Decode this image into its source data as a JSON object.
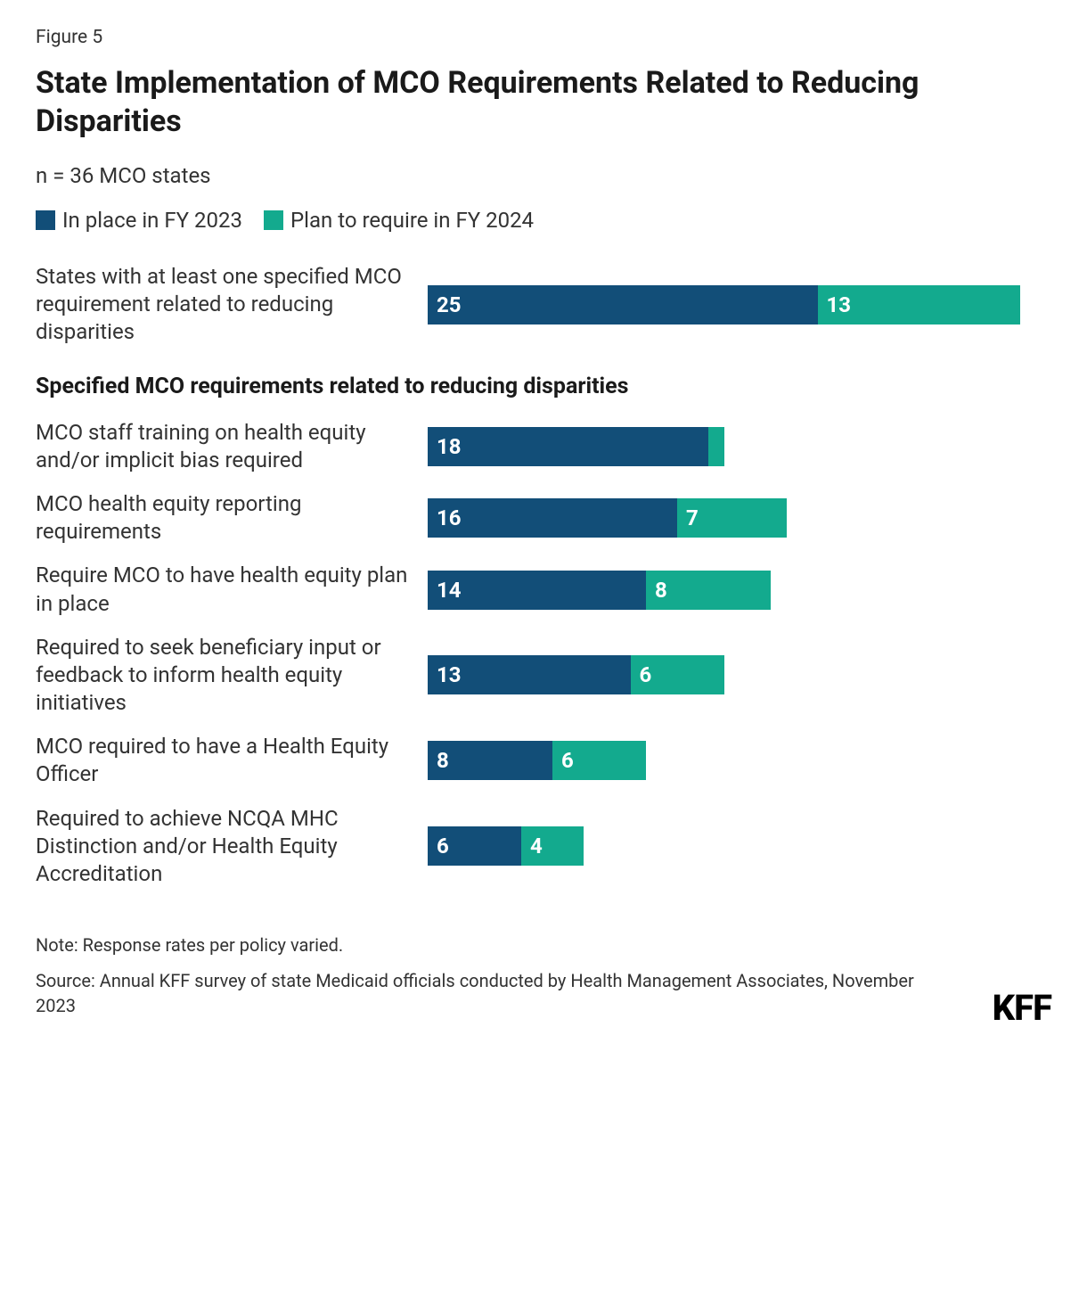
{
  "figure_label": "Figure 5",
  "title": "State Implementation of MCO Requirements Related to Reducing Disparities",
  "subtitle": "n = 36 MCO states",
  "legend": [
    {
      "label": "In place in FY 2023",
      "color": "#124e78"
    },
    {
      "label": "Plan to require in FY 2024",
      "color": "#13aa8e"
    }
  ],
  "max_value": 40,
  "colors": {
    "series_a": "#124e78",
    "series_b": "#13aa8e",
    "text": "#333333",
    "bg": "#ffffff",
    "bar_text": "#ffffff"
  },
  "top_row": {
    "label": "States with at least one specified MCO requirement related to reducing disparities",
    "a": 25,
    "b": 13,
    "a_label": "25",
    "b_label": "13"
  },
  "section_header": "Specified MCO requirements related to reducing disparities",
  "rows": [
    {
      "label": "MCO staff training on health equity and/or implicit bias required",
      "a": 18,
      "b": 1,
      "a_label": "18",
      "b_label": ""
    },
    {
      "label": "MCO health equity reporting requirements",
      "a": 16,
      "b": 7,
      "a_label": "16",
      "b_label": "7"
    },
    {
      "label": "Require MCO to have health equity plan in place",
      "a": 14,
      "b": 8,
      "a_label": "14",
      "b_label": "8"
    },
    {
      "label": "Required to seek beneficiary input or feedback to inform health equity initiatives",
      "a": 13,
      "b": 6,
      "a_label": "13",
      "b_label": "6"
    },
    {
      "label": "MCO required to have a Health Equity Officer",
      "a": 8,
      "b": 6,
      "a_label": "8",
      "b_label": "6"
    },
    {
      "label": "Required to achieve NCQA MHC Distinction and/or Health Equity Accreditation",
      "a": 6,
      "b": 4,
      "a_label": "6",
      "b_label": "4"
    }
  ],
  "note": "Note: Response rates per policy varied.",
  "source": "Source: Annual KFF survey of state Medicaid officials conducted by Health Management Associates, November 2023",
  "logo": "KFF"
}
